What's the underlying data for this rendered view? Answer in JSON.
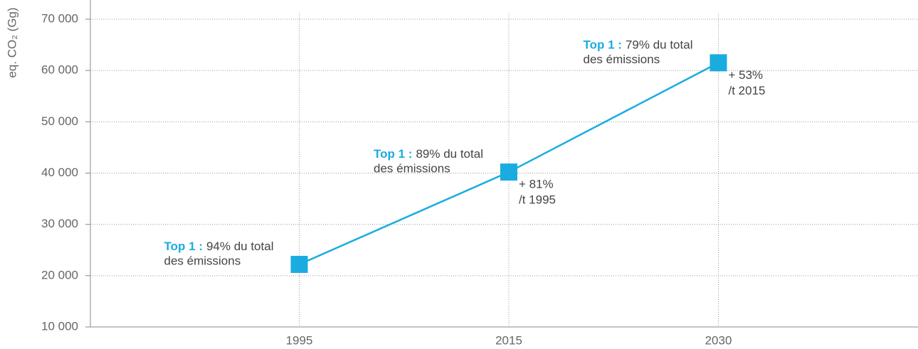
{
  "chart_data": {
    "type": "line",
    "y_label": "eq. CO₂ (Gg)",
    "categories": [
      "1995",
      "2015",
      "2030"
    ],
    "series": [
      {
        "color": "#1aace0",
        "values": [
          22200,
          40200,
          61500
        ]
      }
    ],
    "ylim": [
      10000,
      70000
    ],
    "yticks": [
      {
        "value": 10000,
        "label": "10 000"
      },
      {
        "value": 20000,
        "label": "20 000"
      },
      {
        "value": 30000,
        "label": "30 000"
      },
      {
        "value": 40000,
        "label": "40 000"
      },
      {
        "value": 50000,
        "label": "50 000"
      },
      {
        "value": 60000,
        "label": "60 000"
      },
      {
        "value": 70000,
        "label": "70 000"
      }
    ],
    "grid": true,
    "annotations": [
      {
        "highlight": "Top 1 :",
        "text": "94% du total",
        "line2": "des émissions"
      },
      {
        "highlight": "Top 1 :",
        "text": "89% du total",
        "line2": "des émissions",
        "change": [
          "+ 81%",
          "/t 1995"
        ]
      },
      {
        "highlight": "Top 1 :",
        "text": "79% du total",
        "line2": "des émissions",
        "change": [
          "+ 53%",
          "/t 2015"
        ]
      }
    ]
  }
}
